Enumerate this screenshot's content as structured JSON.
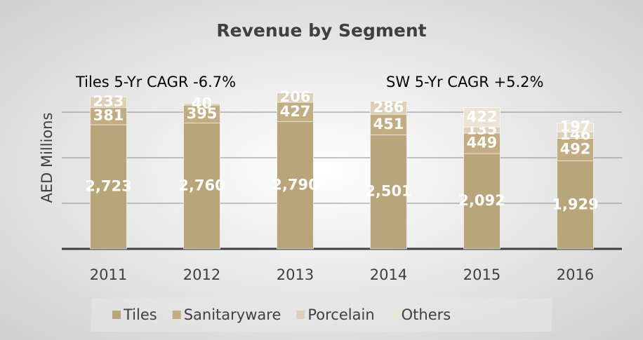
{
  "chart_data": {
    "type": "stacked_bar",
    "title": "Revenue by Segment",
    "annotations": [
      "Tiles 5-Yr CAGR  -6.7%",
      "SW  5-Yr CAGR +5.2%"
    ],
    "y_label": "AED Millions",
    "categories": [
      "2011",
      "2012",
      "2013",
      "2014",
      "2015",
      "2016"
    ],
    "series": [
      {
        "name": "Tiles",
        "color": "#b9a57a",
        "values": [
          2723,
          2760,
          2790,
          2501,
          2092,
          1929
        ],
        "value_labels": [
          "2,723",
          "2,760",
          "2,790",
          "2,501",
          "2,092",
          "1,929"
        ]
      },
      {
        "name": "Sanitaryware",
        "color": "#c2ad82",
        "values": [
          381,
          395,
          427,
          451,
          449,
          492
        ]
      },
      {
        "name": "Porcelain",
        "color": "#dcd1b8",
        "values": [
          233,
          40,
          206,
          286,
          135,
          146
        ]
      },
      {
        "name": "Others",
        "color": "#ebe4d4",
        "values": [
          null,
          null,
          null,
          null,
          422,
          197
        ]
      }
    ],
    "ylim": [
      0,
      3000
    ],
    "yticks": [
      0,
      1000,
      2000,
      3000
    ],
    "grid": true
  }
}
